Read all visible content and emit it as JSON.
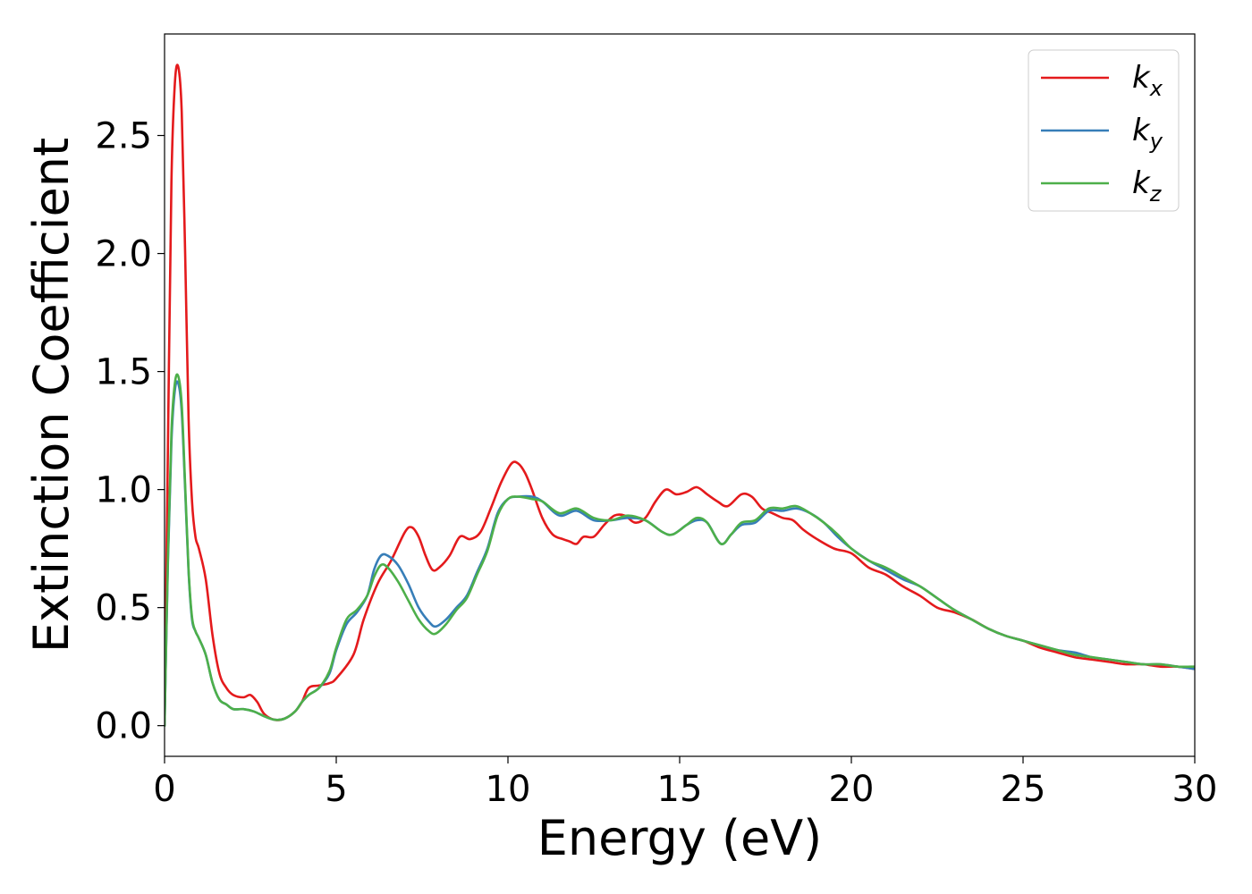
{
  "chart_data": {
    "type": "line",
    "title": "",
    "xlabel": "Energy (eV)",
    "ylabel": "Extinction Coefficient",
    "xlim": [
      0,
      30
    ],
    "ylim": [
      -0.13,
      2.93
    ],
    "xticks": [
      "0",
      "5",
      "10",
      "15",
      "20",
      "25",
      "30"
    ],
    "yticks": [
      "0.0",
      "0.5",
      "1.0",
      "1.5",
      "2.0",
      "2.5"
    ],
    "grid": false,
    "legend": {
      "placement": "top-right",
      "entries": [
        {
          "base": "k",
          "sub": "x",
          "color": "#e41a1c"
        },
        {
          "base": "k",
          "sub": "y",
          "color": "#377eb8"
        },
        {
          "base": "k",
          "sub": "z",
          "color": "#4daf4a"
        }
      ]
    },
    "series": [
      {
        "name": "k_x",
        "color": "#e41a1c",
        "points": [
          [
            0,
            0.0
          ],
          [
            0.1,
            1.2
          ],
          [
            0.2,
            2.3
          ],
          [
            0.3,
            2.72
          ],
          [
            0.4,
            2.79
          ],
          [
            0.5,
            2.6
          ],
          [
            0.6,
            2.0
          ],
          [
            0.7,
            1.3
          ],
          [
            0.8,
            0.95
          ],
          [
            0.9,
            0.8
          ],
          [
            1.0,
            0.75
          ],
          [
            1.2,
            0.62
          ],
          [
            1.4,
            0.38
          ],
          [
            1.6,
            0.22
          ],
          [
            1.8,
            0.16
          ],
          [
            2.0,
            0.13
          ],
          [
            2.3,
            0.12
          ],
          [
            2.5,
            0.13
          ],
          [
            2.7,
            0.1
          ],
          [
            2.9,
            0.05
          ],
          [
            3.2,
            0.025
          ],
          [
            3.5,
            0.03
          ],
          [
            3.8,
            0.06
          ],
          [
            4.0,
            0.1
          ],
          [
            4.2,
            0.16
          ],
          [
            4.5,
            0.17
          ],
          [
            4.8,
            0.18
          ],
          [
            5.0,
            0.2
          ],
          [
            5.5,
            0.3
          ],
          [
            5.8,
            0.45
          ],
          [
            6.2,
            0.6
          ],
          [
            6.6,
            0.7
          ],
          [
            7.0,
            0.82
          ],
          [
            7.2,
            0.84
          ],
          [
            7.4,
            0.8
          ],
          [
            7.6,
            0.72
          ],
          [
            7.8,
            0.66
          ],
          [
            8.0,
            0.67
          ],
          [
            8.3,
            0.72
          ],
          [
            8.6,
            0.8
          ],
          [
            8.9,
            0.79
          ],
          [
            9.2,
            0.82
          ],
          [
            9.5,
            0.92
          ],
          [
            9.8,
            1.03
          ],
          [
            10.1,
            1.11
          ],
          [
            10.3,
            1.11
          ],
          [
            10.5,
            1.07
          ],
          [
            10.7,
            1.0
          ],
          [
            11.0,
            0.88
          ],
          [
            11.3,
            0.81
          ],
          [
            11.6,
            0.79
          ],
          [
            11.8,
            0.78
          ],
          [
            12.0,
            0.77
          ],
          [
            12.2,
            0.8
          ],
          [
            12.5,
            0.8
          ],
          [
            12.8,
            0.85
          ],
          [
            13.1,
            0.89
          ],
          [
            13.4,
            0.89
          ],
          [
            13.7,
            0.86
          ],
          [
            14.0,
            0.88
          ],
          [
            14.3,
            0.95
          ],
          [
            14.6,
            1.0
          ],
          [
            14.9,
            0.98
          ],
          [
            15.2,
            0.99
          ],
          [
            15.5,
            1.01
          ],
          [
            15.8,
            0.98
          ],
          [
            16.1,
            0.95
          ],
          [
            16.4,
            0.93
          ],
          [
            16.8,
            0.98
          ],
          [
            17.1,
            0.97
          ],
          [
            17.4,
            0.92
          ],
          [
            17.7,
            0.9
          ],
          [
            18.0,
            0.88
          ],
          [
            18.3,
            0.87
          ],
          [
            18.6,
            0.83
          ],
          [
            19.0,
            0.79
          ],
          [
            19.5,
            0.75
          ],
          [
            20.0,
            0.73
          ],
          [
            20.5,
            0.67
          ],
          [
            21.0,
            0.64
          ],
          [
            21.5,
            0.59
          ],
          [
            22.0,
            0.55
          ],
          [
            22.5,
            0.5
          ],
          [
            23.0,
            0.48
          ],
          [
            23.5,
            0.45
          ],
          [
            24.0,
            0.41
          ],
          [
            24.5,
            0.38
          ],
          [
            25.0,
            0.36
          ],
          [
            25.5,
            0.33
          ],
          [
            26.0,
            0.31
          ],
          [
            26.5,
            0.29
          ],
          [
            27.0,
            0.28
          ],
          [
            27.5,
            0.27
          ],
          [
            28.0,
            0.26
          ],
          [
            28.5,
            0.26
          ],
          [
            29.0,
            0.25
          ],
          [
            29.5,
            0.25
          ],
          [
            30.0,
            0.24
          ]
        ]
      },
      {
        "name": "k_y",
        "color": "#377eb8",
        "points": [
          [
            0,
            0.0
          ],
          [
            0.1,
            0.7
          ],
          [
            0.2,
            1.2
          ],
          [
            0.3,
            1.42
          ],
          [
            0.4,
            1.45
          ],
          [
            0.5,
            1.33
          ],
          [
            0.6,
            1.0
          ],
          [
            0.7,
            0.65
          ],
          [
            0.8,
            0.45
          ],
          [
            0.9,
            0.4
          ],
          [
            1.0,
            0.37
          ],
          [
            1.2,
            0.3
          ],
          [
            1.4,
            0.18
          ],
          [
            1.6,
            0.11
          ],
          [
            1.8,
            0.09
          ],
          [
            2.0,
            0.07
          ],
          [
            2.3,
            0.07
          ],
          [
            2.6,
            0.06
          ],
          [
            2.9,
            0.04
          ],
          [
            3.2,
            0.025
          ],
          [
            3.5,
            0.03
          ],
          [
            3.8,
            0.06
          ],
          [
            4.0,
            0.1
          ],
          [
            4.2,
            0.13
          ],
          [
            4.5,
            0.16
          ],
          [
            4.8,
            0.22
          ],
          [
            5.0,
            0.32
          ],
          [
            5.3,
            0.43
          ],
          [
            5.6,
            0.48
          ],
          [
            5.9,
            0.55
          ],
          [
            6.1,
            0.66
          ],
          [
            6.3,
            0.72
          ],
          [
            6.5,
            0.72
          ],
          [
            6.8,
            0.68
          ],
          [
            7.1,
            0.6
          ],
          [
            7.4,
            0.5
          ],
          [
            7.7,
            0.44
          ],
          [
            7.9,
            0.42
          ],
          [
            8.2,
            0.45
          ],
          [
            8.5,
            0.5
          ],
          [
            8.8,
            0.55
          ],
          [
            9.1,
            0.65
          ],
          [
            9.4,
            0.75
          ],
          [
            9.7,
            0.9
          ],
          [
            10.0,
            0.96
          ],
          [
            10.3,
            0.97
          ],
          [
            10.7,
            0.97
          ],
          [
            11.0,
            0.95
          ],
          [
            11.5,
            0.89
          ],
          [
            12.0,
            0.91
          ],
          [
            12.5,
            0.87
          ],
          [
            13.0,
            0.87
          ],
          [
            13.5,
            0.88
          ],
          [
            14.0,
            0.87
          ],
          [
            14.5,
            0.82
          ],
          [
            14.8,
            0.81
          ],
          [
            15.2,
            0.85
          ],
          [
            15.5,
            0.87
          ],
          [
            15.8,
            0.86
          ],
          [
            16.2,
            0.77
          ],
          [
            16.5,
            0.81
          ],
          [
            16.8,
            0.85
          ],
          [
            17.2,
            0.86
          ],
          [
            17.6,
            0.91
          ],
          [
            18.0,
            0.91
          ],
          [
            18.4,
            0.92
          ],
          [
            18.8,
            0.9
          ],
          [
            19.2,
            0.86
          ],
          [
            19.6,
            0.8
          ],
          [
            20.0,
            0.75
          ],
          [
            20.5,
            0.7
          ],
          [
            21.0,
            0.66
          ],
          [
            21.5,
            0.62
          ],
          [
            22.0,
            0.59
          ],
          [
            22.5,
            0.54
          ],
          [
            23.0,
            0.49
          ],
          [
            23.5,
            0.45
          ],
          [
            24.0,
            0.41
          ],
          [
            24.5,
            0.38
          ],
          [
            25.0,
            0.36
          ],
          [
            25.5,
            0.34
          ],
          [
            26.0,
            0.32
          ],
          [
            26.5,
            0.31
          ],
          [
            27.0,
            0.29
          ],
          [
            27.5,
            0.28
          ],
          [
            28.0,
            0.27
          ],
          [
            28.5,
            0.26
          ],
          [
            29.0,
            0.26
          ],
          [
            29.5,
            0.25
          ],
          [
            30.0,
            0.24
          ]
        ]
      },
      {
        "name": "k_z",
        "color": "#4daf4a",
        "points": [
          [
            0,
            0.0
          ],
          [
            0.1,
            0.72
          ],
          [
            0.2,
            1.24
          ],
          [
            0.3,
            1.45
          ],
          [
            0.4,
            1.48
          ],
          [
            0.5,
            1.36
          ],
          [
            0.6,
            1.02
          ],
          [
            0.7,
            0.66
          ],
          [
            0.8,
            0.46
          ],
          [
            0.9,
            0.4
          ],
          [
            1.0,
            0.37
          ],
          [
            1.2,
            0.3
          ],
          [
            1.4,
            0.18
          ],
          [
            1.6,
            0.11
          ],
          [
            1.8,
            0.09
          ],
          [
            2.0,
            0.07
          ],
          [
            2.3,
            0.07
          ],
          [
            2.6,
            0.06
          ],
          [
            2.9,
            0.04
          ],
          [
            3.2,
            0.025
          ],
          [
            3.5,
            0.03
          ],
          [
            3.8,
            0.06
          ],
          [
            4.0,
            0.1
          ],
          [
            4.2,
            0.13
          ],
          [
            4.5,
            0.16
          ],
          [
            4.8,
            0.23
          ],
          [
            5.0,
            0.33
          ],
          [
            5.3,
            0.45
          ],
          [
            5.6,
            0.49
          ],
          [
            5.9,
            0.55
          ],
          [
            6.1,
            0.63
          ],
          [
            6.3,
            0.68
          ],
          [
            6.5,
            0.67
          ],
          [
            6.8,
            0.61
          ],
          [
            7.1,
            0.53
          ],
          [
            7.4,
            0.45
          ],
          [
            7.7,
            0.4
          ],
          [
            7.9,
            0.39
          ],
          [
            8.2,
            0.43
          ],
          [
            8.5,
            0.49
          ],
          [
            8.8,
            0.54
          ],
          [
            9.1,
            0.64
          ],
          [
            9.4,
            0.74
          ],
          [
            9.7,
            0.89
          ],
          [
            10.0,
            0.96
          ],
          [
            10.3,
            0.97
          ],
          [
            10.7,
            0.96
          ],
          [
            11.0,
            0.95
          ],
          [
            11.5,
            0.9
          ],
          [
            12.0,
            0.92
          ],
          [
            12.5,
            0.88
          ],
          [
            13.0,
            0.87
          ],
          [
            13.5,
            0.89
          ],
          [
            14.0,
            0.87
          ],
          [
            14.5,
            0.82
          ],
          [
            14.8,
            0.81
          ],
          [
            15.2,
            0.85
          ],
          [
            15.5,
            0.88
          ],
          [
            15.8,
            0.86
          ],
          [
            16.2,
            0.77
          ],
          [
            16.5,
            0.81
          ],
          [
            16.8,
            0.86
          ],
          [
            17.2,
            0.87
          ],
          [
            17.6,
            0.92
          ],
          [
            18.0,
            0.92
          ],
          [
            18.4,
            0.93
          ],
          [
            18.8,
            0.9
          ],
          [
            19.2,
            0.86
          ],
          [
            19.6,
            0.81
          ],
          [
            20.0,
            0.75
          ],
          [
            20.5,
            0.7
          ],
          [
            21.0,
            0.67
          ],
          [
            21.5,
            0.63
          ],
          [
            22.0,
            0.59
          ],
          [
            22.5,
            0.54
          ],
          [
            23.0,
            0.49
          ],
          [
            23.5,
            0.45
          ],
          [
            24.0,
            0.41
          ],
          [
            24.5,
            0.38
          ],
          [
            25.0,
            0.36
          ],
          [
            25.5,
            0.34
          ],
          [
            26.0,
            0.32
          ],
          [
            26.5,
            0.3
          ],
          [
            27.0,
            0.29
          ],
          [
            27.5,
            0.28
          ],
          [
            28.0,
            0.27
          ],
          [
            28.5,
            0.26
          ],
          [
            29.0,
            0.26
          ],
          [
            29.5,
            0.25
          ],
          [
            30.0,
            0.25
          ]
        ]
      }
    ]
  }
}
